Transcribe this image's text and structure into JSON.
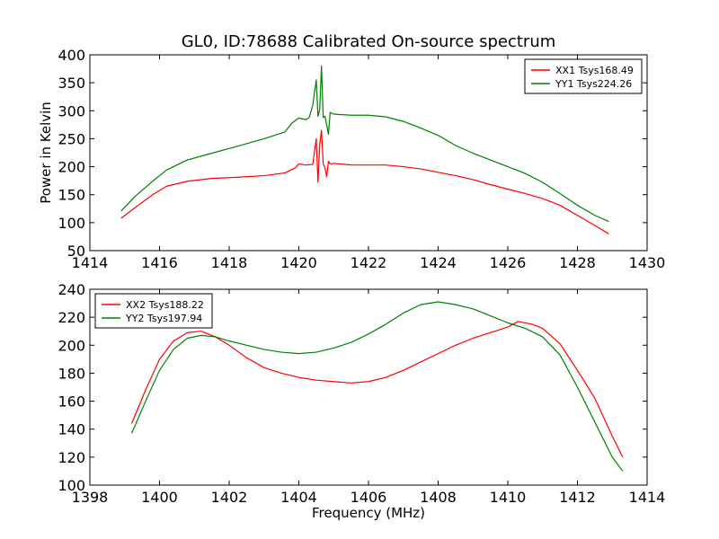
{
  "chart_data": [
    {
      "type": "line",
      "title": "GL0, ID:78688 Calibrated On-source spectrum",
      "xlabel": "",
      "ylabel": "Power in Kelvin",
      "xlim": [
        1414,
        1430
      ],
      "ylim": [
        50,
        400
      ],
      "xticks": [
        1414,
        1416,
        1418,
        1420,
        1422,
        1424,
        1426,
        1428,
        1430
      ],
      "yticks": [
        50,
        100,
        150,
        200,
        250,
        300,
        350,
        400
      ],
      "grid": false,
      "legend_position": "top-right",
      "series": [
        {
          "name": "XX1 Tsys168.49",
          "color": "#ff0000",
          "x": [
            1414.9,
            1415.3,
            1415.8,
            1416.2,
            1416.8,
            1417.5,
            1418.2,
            1419.0,
            1419.6,
            1419.9,
            1420.0,
            1420.2,
            1420.4,
            1420.5,
            1420.55,
            1420.6,
            1420.65,
            1420.7,
            1420.75,
            1420.8,
            1420.85,
            1420.9,
            1421.0,
            1421.5,
            1422.0,
            1422.5,
            1423.0,
            1423.5,
            1424.0,
            1424.5,
            1425.0,
            1425.5,
            1426.0,
            1426.5,
            1427.0,
            1427.5,
            1428.0,
            1428.5,
            1428.9
          ],
          "y": [
            108,
            127,
            150,
            165,
            174,
            179,
            181,
            184,
            189,
            198,
            205,
            203,
            204,
            250,
            172,
            240,
            265,
            205,
            198,
            182,
            210,
            205,
            206,
            203,
            203,
            203,
            200,
            196,
            190,
            184,
            177,
            168,
            160,
            152,
            143,
            131,
            113,
            95,
            80
          ]
        },
        {
          "name": "YY1 Tsys224.26",
          "color": "#008000",
          "x": [
            1414.9,
            1415.3,
            1415.8,
            1416.2,
            1416.8,
            1417.5,
            1418.2,
            1419.0,
            1419.6,
            1419.8,
            1420.0,
            1420.2,
            1420.3,
            1420.4,
            1420.5,
            1420.55,
            1420.6,
            1420.65,
            1420.7,
            1420.75,
            1420.8,
            1420.85,
            1420.9,
            1421.0,
            1421.5,
            1422.0,
            1422.5,
            1423.0,
            1423.5,
            1424.0,
            1424.5,
            1425.0,
            1425.5,
            1426.0,
            1426.5,
            1427.0,
            1427.5,
            1428.0,
            1428.5,
            1428.9
          ],
          "y": [
            121,
            147,
            174,
            194,
            212,
            224,
            236,
            250,
            262,
            278,
            287,
            284,
            288,
            310,
            355,
            290,
            302,
            380,
            288,
            290,
            275,
            258,
            297,
            294,
            292,
            292,
            289,
            281,
            269,
            256,
            238,
            224,
            212,
            200,
            188,
            172,
            152,
            131,
            113,
            102
          ]
        }
      ]
    },
    {
      "type": "line",
      "title": "",
      "xlabel": "Frequency (MHz)",
      "ylabel": "",
      "xlim": [
        1398,
        1414
      ],
      "ylim": [
        100,
        240
      ],
      "xticks": [
        1398,
        1400,
        1402,
        1404,
        1406,
        1408,
        1410,
        1412,
        1414
      ],
      "yticks": [
        100,
        120,
        140,
        160,
        180,
        200,
        220,
        240
      ],
      "grid": false,
      "legend_position": "top-left",
      "series": [
        {
          "name": "XX2 Tsys188.22",
          "color": "#ff0000",
          "x": [
            1399.2,
            1399.6,
            1400.0,
            1400.4,
            1400.8,
            1401.2,
            1401.6,
            1402.0,
            1402.5,
            1403.0,
            1403.5,
            1404.0,
            1404.5,
            1405.0,
            1405.5,
            1406.0,
            1406.5,
            1407.0,
            1407.5,
            1408.0,
            1408.5,
            1409.0,
            1409.5,
            1410.0,
            1410.3,
            1410.7,
            1411.0,
            1411.5,
            1412.0,
            1412.5,
            1413.0,
            1413.3
          ],
          "y": [
            144,
            168,
            190,
            203,
            209,
            210,
            206,
            200,
            191,
            184,
            180,
            177,
            175,
            174,
            173,
            174,
            177,
            182,
            188,
            194,
            200,
            205,
            209,
            213,
            217,
            215,
            212,
            201,
            182,
            162,
            135,
            120
          ]
        },
        {
          "name": "YY2 Tsys197.94",
          "color": "#008000",
          "x": [
            1399.2,
            1399.6,
            1400.0,
            1400.4,
            1400.8,
            1401.2,
            1401.6,
            1402.0,
            1402.5,
            1403.0,
            1403.5,
            1404.0,
            1404.5,
            1405.0,
            1405.5,
            1406.0,
            1406.5,
            1407.0,
            1407.5,
            1408.0,
            1408.5,
            1409.0,
            1409.5,
            1410.0,
            1410.5,
            1411.0,
            1411.5,
            1412.0,
            1412.5,
            1413.0,
            1413.3
          ],
          "y": [
            137,
            160,
            182,
            197,
            205,
            207,
            206,
            203,
            200,
            197,
            195,
            194,
            195,
            198,
            202,
            208,
            215,
            223,
            229,
            231,
            229,
            226,
            221,
            216,
            212,
            206,
            193,
            170,
            145,
            120,
            110
          ]
        }
      ]
    }
  ]
}
